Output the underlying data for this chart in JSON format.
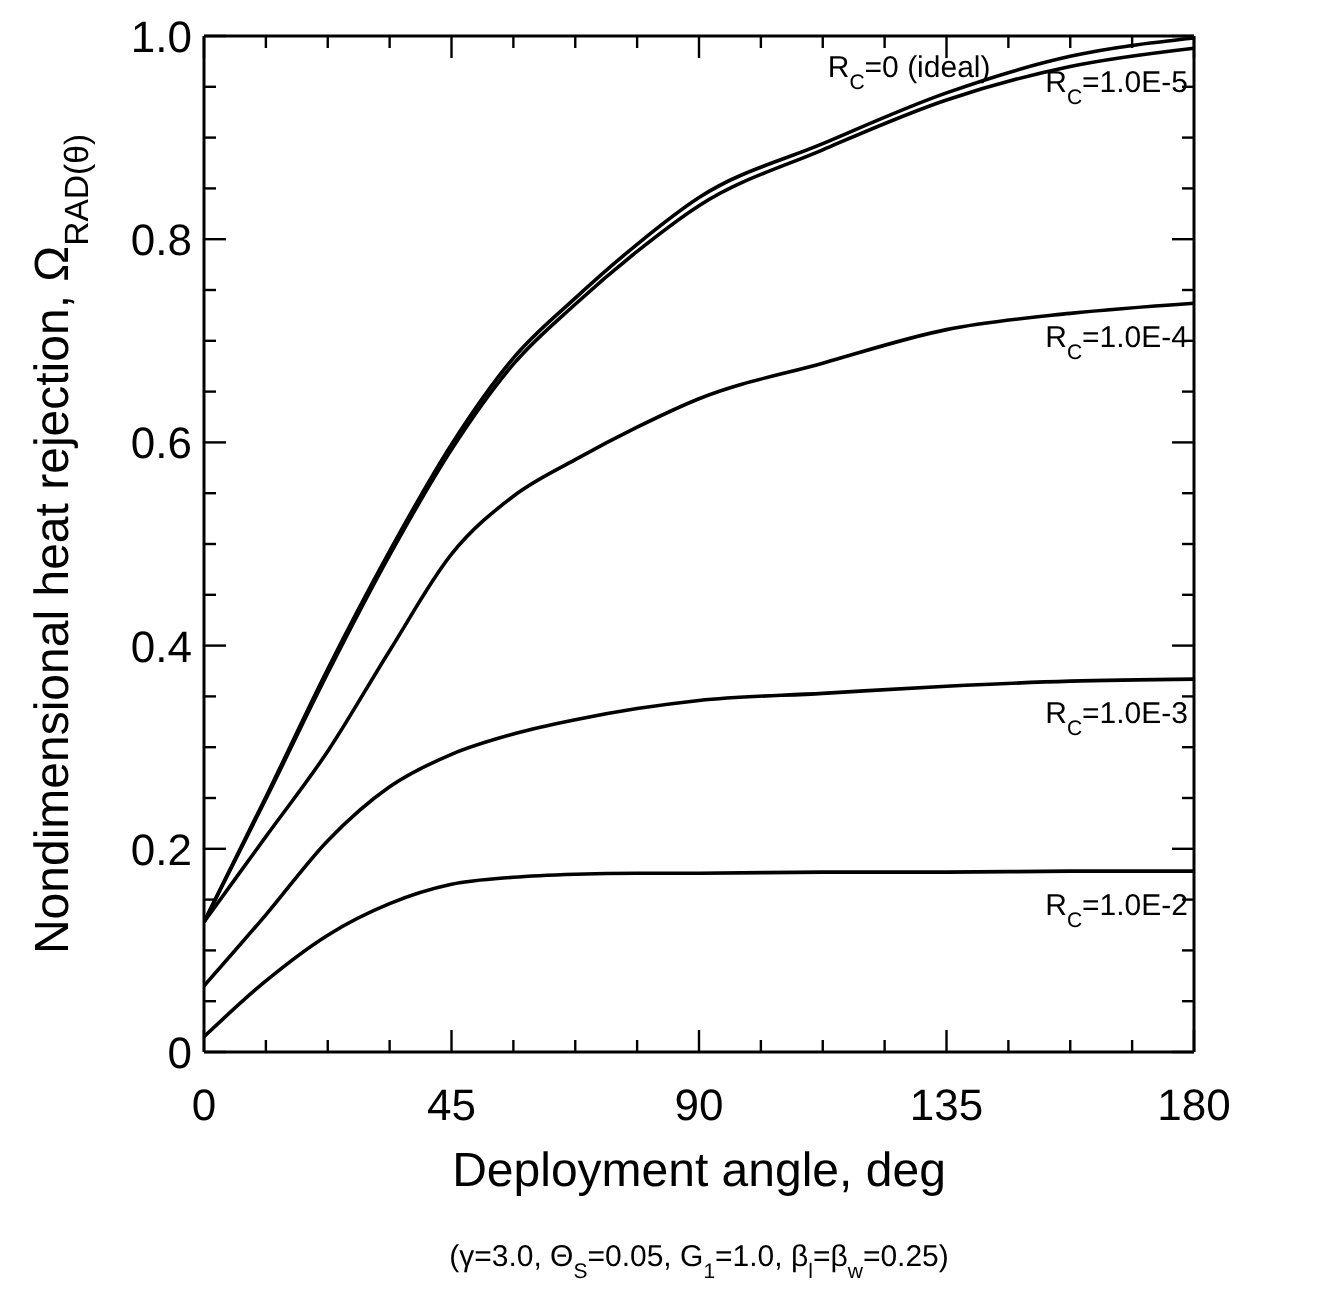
{
  "chart_data": {
    "type": "line",
    "xlabel": "Deployment angle, deg",
    "ylabel": "Nondimensional heat rejection, Ω$_{RAD(θ)}$",
    "x": [
      0,
      11.25,
      22.5,
      33.75,
      45,
      56.25,
      67.5,
      78.75,
      90,
      112.5,
      135,
      157.5,
      180
    ],
    "series": [
      {
        "name": "R$_{C}$=0 (ideal)",
        "color": "#000000",
        "values": [
          0.128,
          0.251,
          0.377,
          0.493,
          0.598,
          0.683,
          0.742,
          0.795,
          0.841,
          0.894,
          0.944,
          0.98,
          0.998
        ]
      },
      {
        "name": "R$_{C}$=1.0E-5",
        "color": "#000000",
        "values": [
          0.128,
          0.249,
          0.373,
          0.489,
          0.593,
          0.677,
          0.736,
          0.788,
          0.833,
          0.888,
          0.937,
          0.97,
          0.988
        ]
      },
      {
        "name": "R$_{C}$=1.0E-4",
        "color": "#000000",
        "values": [
          0.128,
          0.212,
          0.296,
          0.395,
          0.49,
          0.547,
          0.583,
          0.615,
          0.643,
          0.678,
          0.711,
          0.727,
          0.737
        ]
      },
      {
        "name": "R$_{C}$=1.0E-3",
        "color": "#000000",
        "values": [
          0.065,
          0.135,
          0.208,
          0.261,
          0.293,
          0.313,
          0.327,
          0.338,
          0.346,
          0.353,
          0.36,
          0.365,
          0.367
        ]
      },
      {
        "name": "R$_{C}$=1.0E-2",
        "color": "#000000",
        "values": [
          0.015,
          0.07,
          0.115,
          0.146,
          0.165,
          0.172,
          0.175,
          0.176,
          0.176,
          0.177,
          0.177,
          0.178,
          0.178
        ]
      }
    ],
    "xlim": [
      0,
      180
    ],
    "ylim": [
      0,
      1
    ],
    "xticks": [
      0,
      {
        "value": 11.25,
        "label": null
      },
      {
        "value": 22.5,
        "label": null
      },
      {
        "value": 33.75,
        "label": null
      },
      45,
      {
        "value": 56.25,
        "label": null
      },
      {
        "value": 67.5,
        "label": null
      },
      {
        "value": 78.75,
        "label": null
      },
      90,
      {
        "value": 101.25,
        "label": null
      },
      {
        "value": 112.5,
        "label": null
      },
      {
        "value": 123.75,
        "label": null
      },
      135,
      {
        "value": 146.25,
        "label": null
      },
      {
        "value": 157.5,
        "label": null
      },
      {
        "value": 168.75,
        "label": null
      },
      180
    ],
    "yticks": [
      0,
      {
        "value": 0.05,
        "label": null
      },
      {
        "value": 0.1,
        "label": null
      },
      {
        "value": 0.15,
        "label": null
      },
      0.2,
      {
        "value": 0.25,
        "label": null
      },
      {
        "value": 0.3,
        "label": null
      },
      {
        "value": 0.35,
        "label": null
      },
      0.4,
      {
        "value": 0.45,
        "label": null
      },
      {
        "value": 0.5,
        "label": null
      },
      {
        "value": 0.55,
        "label": null
      },
      0.6,
      {
        "value": 0.65,
        "label": null
      },
      {
        "value": 0.7,
        "label": null
      },
      {
        "value": 0.75,
        "label": null
      },
      0.8,
      {
        "value": 0.85,
        "label": null
      },
      {
        "value": 0.9,
        "label": null
      },
      {
        "value": 0.95,
        "label": null
      },
      {
        "value": 1,
        "label": "1.0"
      }
    ],
    "annotations": [
      "(γ=3.0, Θ$_{S}$=0.05, G$_{1}$=1.0, β$_{l}$=β$_{w}$=0.25)"
    ],
    "grid": false,
    "legend": "right",
    "marker": "none",
    "line_style": "solid"
  }
}
